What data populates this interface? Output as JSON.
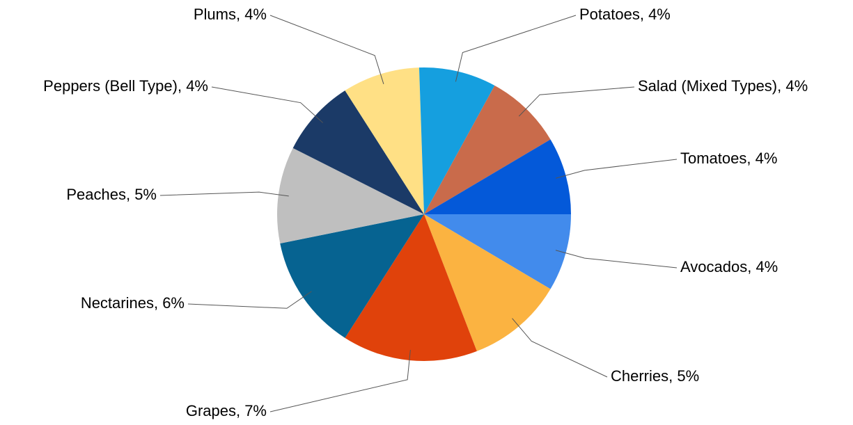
{
  "chart_data": {
    "type": "pie",
    "values": [
      4,
      5,
      7,
      6,
      5,
      4,
      4,
      4,
      4,
      4
    ],
    "value_labels": [
      "Avocados, 4%",
      "Cherries, 5%",
      "Grapes, 7%",
      "Nectarines, 6%",
      "Peaches, 5%",
      "Peppers (Bell Type), 4%",
      "Plums, 4%",
      "Potatoes, 4%",
      "Salad (Mixed Types), 4%",
      "Tomatoes, 4%"
    ],
    "colors": [
      "#428bec",
      "#fbb341",
      "#e0420b",
      "#066391",
      "#bfbfbf",
      "#1b3a67",
      "#ffe085",
      "#159fdf",
      "#c96b4b",
      "#0459d9"
    ]
  }
}
